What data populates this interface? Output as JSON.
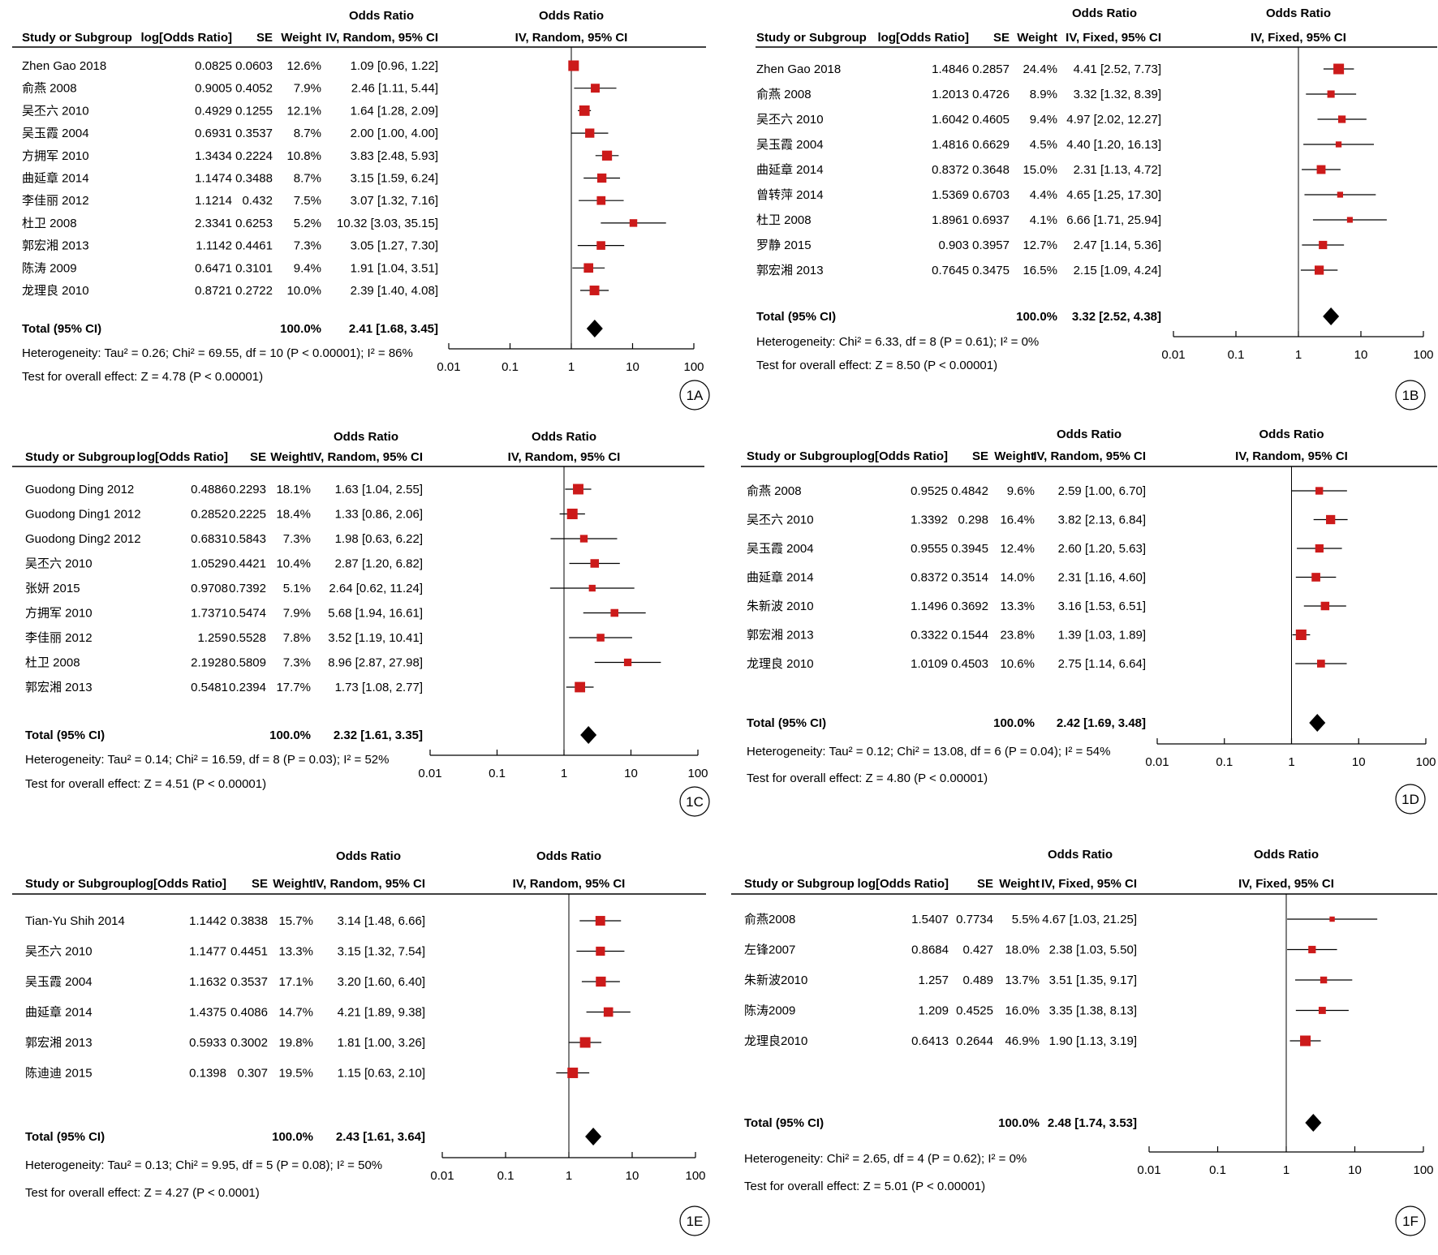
{
  "chart_data": [
    {
      "type": "forest",
      "panel_label": "1A",
      "title_effect": "Odds Ratio",
      "method_text": "IV, Random, 95% CI",
      "col_headers": {
        "study": "Study or Subgroup",
        "log": "log[Odds Ratio]",
        "se": "SE",
        "weight": "Weight"
      },
      "studies": [
        {
          "name": "Zhen Gao 2018",
          "log": "0.0825",
          "se": "0.0603",
          "weight": "12.6%",
          "ci": "1.09 [0.96, 1.22]",
          "or": 1.09,
          "lo": 0.96,
          "hi": 1.22
        },
        {
          "name": "俞燕 2008",
          "log": "0.9005",
          "se": "0.4052",
          "weight": "7.9%",
          "ci": "2.46 [1.11, 5.44]",
          "or": 2.46,
          "lo": 1.11,
          "hi": 5.44
        },
        {
          "name": "吴丕六 2010",
          "log": "0.4929",
          "se": "0.1255",
          "weight": "12.1%",
          "ci": "1.64 [1.28, 2.09]",
          "or": 1.64,
          "lo": 1.28,
          "hi": 2.09
        },
        {
          "name": "吴玉霞 2004",
          "log": "0.6931",
          "se": "0.3537",
          "weight": "8.7%",
          "ci": "2.00 [1.00, 4.00]",
          "or": 2.0,
          "lo": 1.0,
          "hi": 4.0
        },
        {
          "name": "方拥军 2010",
          "log": "1.3434",
          "se": "0.2224",
          "weight": "10.8%",
          "ci": "3.83 [2.48, 5.93]",
          "or": 3.83,
          "lo": 2.48,
          "hi": 5.93
        },
        {
          "name": "曲延章 2014",
          "log": "1.1474",
          "se": "0.3488",
          "weight": "8.7%",
          "ci": "3.15 [1.59, 6.24]",
          "or": 3.15,
          "lo": 1.59,
          "hi": 6.24
        },
        {
          "name": "李佳丽 2012",
          "log": "1.1214",
          "se": "0.432",
          "weight": "7.5%",
          "ci": "3.07 [1.32, 7.16]",
          "or": 3.07,
          "lo": 1.32,
          "hi": 7.16
        },
        {
          "name": "杜卫 2008",
          "log": "2.3341",
          "se": "0.6253",
          "weight": "5.2%",
          "ci": "10.32 [3.03, 35.15]",
          "or": 10.32,
          "lo": 3.03,
          "hi": 35.15
        },
        {
          "name": "郭宏湘 2013",
          "log": "1.1142",
          "se": "0.4461",
          "weight": "7.3%",
          "ci": "3.05 [1.27, 7.30]",
          "or": 3.05,
          "lo": 1.27,
          "hi": 7.3
        },
        {
          "name": "陈涛 2009",
          "log": "0.6471",
          "se": "0.3101",
          "weight": "9.4%",
          "ci": "1.91 [1.04, 3.51]",
          "or": 1.91,
          "lo": 1.04,
          "hi": 3.51
        },
        {
          "name": "龙理良 2010",
          "log": "0.8721",
          "se": "0.2722",
          "weight": "10.0%",
          "ci": "2.39 [1.40, 4.08]",
          "or": 2.39,
          "lo": 1.4,
          "hi": 4.08
        }
      ],
      "total": {
        "label": "Total (95% CI)",
        "weight": "100.0%",
        "ci": "2.41 [1.68, 3.45]",
        "or": 2.41,
        "lo": 1.68,
        "hi": 3.45
      },
      "heterogeneity": "Heterogeneity: Tau² = 0.26; Chi² = 69.55, df = 10 (P < 0.00001); I² = 86%",
      "overall_effect": "Test for overall effect: Z = 4.78 (P < 0.00001)",
      "x_ticks": [
        "0.01",
        "0.1",
        "1",
        "10",
        "100"
      ],
      "x_scale": "log",
      "xlim": [
        0.01,
        100
      ]
    },
    {
      "type": "forest",
      "panel_label": "1B",
      "title_effect": "Odds Ratio",
      "method_text": "IV, Fixed, 95% CI",
      "col_headers": {
        "study": "Study or Subgroup",
        "log": "log[Odds Ratio]",
        "se": "SE",
        "weight": "Weight"
      },
      "studies": [
        {
          "name": "Zhen Gao 2018",
          "log": "1.4846",
          "se": "0.2857",
          "weight": "24.4%",
          "ci": "4.41 [2.52, 7.73]",
          "or": 4.41,
          "lo": 2.52,
          "hi": 7.73
        },
        {
          "name": "俞燕 2008",
          "log": "1.2013",
          "se": "0.4726",
          "weight": "8.9%",
          "ci": "3.32 [1.32, 8.39]",
          "or": 3.32,
          "lo": 1.32,
          "hi": 8.39
        },
        {
          "name": "吴丕六 2010",
          "log": "1.6042",
          "se": "0.4605",
          "weight": "9.4%",
          "ci": "4.97 [2.02, 12.27]",
          "or": 4.97,
          "lo": 2.02,
          "hi": 12.27
        },
        {
          "name": "吴玉霞 2004",
          "log": "1.4816",
          "se": "0.6629",
          "weight": "4.5%",
          "ci": "4.40 [1.20, 16.13]",
          "or": 4.4,
          "lo": 1.2,
          "hi": 16.13
        },
        {
          "name": "曲延章 2014",
          "log": "0.8372",
          "se": "0.3648",
          "weight": "15.0%",
          "ci": "2.31 [1.13, 4.72]",
          "or": 2.31,
          "lo": 1.13,
          "hi": 4.72
        },
        {
          "name": "曾转萍 2014",
          "log": "1.5369",
          "se": "0.6703",
          "weight": "4.4%",
          "ci": "4.65 [1.25, 17.30]",
          "or": 4.65,
          "lo": 1.25,
          "hi": 17.3
        },
        {
          "name": "杜卫 2008",
          "log": "1.8961",
          "se": "0.6937",
          "weight": "4.1%",
          "ci": "6.66 [1.71, 25.94]",
          "or": 6.66,
          "lo": 1.71,
          "hi": 25.94
        },
        {
          "name": "罗静 2015",
          "log": "0.903",
          "se": "0.3957",
          "weight": "12.7%",
          "ci": "2.47 [1.14, 5.36]",
          "or": 2.47,
          "lo": 1.14,
          "hi": 5.36
        },
        {
          "name": "郭宏湘 2013",
          "log": "0.7645",
          "se": "0.3475",
          "weight": "16.5%",
          "ci": "2.15 [1.09, 4.24]",
          "or": 2.15,
          "lo": 1.09,
          "hi": 4.24
        }
      ],
      "total": {
        "label": "Total (95% CI)",
        "weight": "100.0%",
        "ci": "3.32 [2.52, 4.38]",
        "or": 3.32,
        "lo": 2.52,
        "hi": 4.38
      },
      "heterogeneity": "Heterogeneity: Chi² = 6.33, df = 8 (P = 0.61); I² = 0%",
      "overall_effect": "Test for overall effect: Z = 8.50 (P < 0.00001)",
      "x_ticks": [
        "0.01",
        "0.1",
        "1",
        "10",
        "100"
      ],
      "x_scale": "log",
      "xlim": [
        0.01,
        100
      ]
    },
    {
      "type": "forest",
      "panel_label": "1C",
      "title_effect": "Odds Ratio",
      "method_text": "IV, Random, 95% CI",
      "col_headers": {
        "study": "Study or Subgroup",
        "log": "log[Odds Ratio]",
        "se": "SE",
        "weight": "Weight"
      },
      "studies": [
        {
          "name": "Guodong Ding 2012",
          "log": "0.4886",
          "se": "0.2293",
          "weight": "18.1%",
          "ci": "1.63 [1.04, 2.55]",
          "or": 1.63,
          "lo": 1.04,
          "hi": 2.55
        },
        {
          "name": "Guodong Ding1 2012",
          "log": "0.2852",
          "se": "0.2225",
          "weight": "18.4%",
          "ci": "1.33 [0.86, 2.06]",
          "or": 1.33,
          "lo": 0.86,
          "hi": 2.06
        },
        {
          "name": "Guodong Ding2 2012",
          "log": "0.6831",
          "se": "0.5843",
          "weight": "7.3%",
          "ci": "1.98 [0.63, 6.22]",
          "or": 1.98,
          "lo": 0.63,
          "hi": 6.22
        },
        {
          "name": "吴丕六 2010",
          "log": "1.0529",
          "se": "0.4421",
          "weight": "10.4%",
          "ci": "2.87 [1.20, 6.82]",
          "or": 2.87,
          "lo": 1.2,
          "hi": 6.82
        },
        {
          "name": "张妍 2015",
          "log": "0.9708",
          "se": "0.7392",
          "weight": "5.1%",
          "ci": "2.64 [0.62, 11.24]",
          "or": 2.64,
          "lo": 0.62,
          "hi": 11.24
        },
        {
          "name": "方拥军 2010",
          "log": "1.7371",
          "se": "0.5474",
          "weight": "7.9%",
          "ci": "5.68 [1.94, 16.61]",
          "or": 5.68,
          "lo": 1.94,
          "hi": 16.61
        },
        {
          "name": "李佳丽 2012",
          "log": "1.259",
          "se": "0.5528",
          "weight": "7.8%",
          "ci": "3.52 [1.19, 10.41]",
          "or": 3.52,
          "lo": 1.19,
          "hi": 10.41
        },
        {
          "name": "杜卫 2008",
          "log": "2.1928",
          "se": "0.5809",
          "weight": "7.3%",
          "ci": "8.96 [2.87, 27.98]",
          "or": 8.96,
          "lo": 2.87,
          "hi": 27.98
        },
        {
          "name": "郭宏湘 2013",
          "log": "0.5481",
          "se": "0.2394",
          "weight": "17.7%",
          "ci": "1.73 [1.08, 2.77]",
          "or": 1.73,
          "lo": 1.08,
          "hi": 2.77
        }
      ],
      "total": {
        "label": "Total (95% CI)",
        "weight": "100.0%",
        "ci": "2.32 [1.61, 3.35]",
        "or": 2.32,
        "lo": 1.61,
        "hi": 3.35
      },
      "heterogeneity": "Heterogeneity: Tau² = 0.14; Chi² = 16.59, df = 8 (P = 0.03); I² = 52%",
      "overall_effect": "Test for overall effect: Z = 4.51 (P < 0.00001)",
      "x_ticks": [
        "0.01",
        "0.1",
        "1",
        "10",
        "100"
      ],
      "x_scale": "log",
      "xlim": [
        0.01,
        100
      ]
    },
    {
      "type": "forest",
      "panel_label": "1D",
      "title_effect": "Odds Ratio",
      "method_text": "IV, Random, 95% CI",
      "col_headers": {
        "study": "Study or Subgroup",
        "log": "log[Odds Ratio]",
        "se": "SE",
        "weight": "Weight"
      },
      "studies": [
        {
          "name": "俞燕 2008",
          "log": "0.9525",
          "se": "0.4842",
          "weight": "9.6%",
          "ci": "2.59 [1.00, 6.70]",
          "or": 2.59,
          "lo": 1.0,
          "hi": 6.7
        },
        {
          "name": "吴丕六 2010",
          "log": "1.3392",
          "se": "0.298",
          "weight": "16.4%",
          "ci": "3.82 [2.13, 6.84]",
          "or": 3.82,
          "lo": 2.13,
          "hi": 6.84
        },
        {
          "name": "吴玉霞 2004",
          "log": "0.9555",
          "se": "0.3945",
          "weight": "12.4%",
          "ci": "2.60 [1.20, 5.63]",
          "or": 2.6,
          "lo": 1.2,
          "hi": 5.63
        },
        {
          "name": "曲延章 2014",
          "log": "0.8372",
          "se": "0.3514",
          "weight": "14.0%",
          "ci": "2.31 [1.16, 4.60]",
          "or": 2.31,
          "lo": 1.16,
          "hi": 4.6
        },
        {
          "name": "朱新波 2010",
          "log": "1.1496",
          "se": "0.3692",
          "weight": "13.3%",
          "ci": "3.16 [1.53, 6.51]",
          "or": 3.16,
          "lo": 1.53,
          "hi": 6.51
        },
        {
          "name": "郭宏湘 2013",
          "log": "0.3322",
          "se": "0.1544",
          "weight": "23.8%",
          "ci": "1.39 [1.03, 1.89]",
          "or": 1.39,
          "lo": 1.03,
          "hi": 1.89
        },
        {
          "name": "龙理良 2010",
          "log": "1.0109",
          "se": "0.4503",
          "weight": "10.6%",
          "ci": "2.75 [1.14, 6.64]",
          "or": 2.75,
          "lo": 1.14,
          "hi": 6.64
        }
      ],
      "total": {
        "label": "Total (95% CI)",
        "weight": "100.0%",
        "ci": "2.42 [1.69, 3.48]",
        "or": 2.42,
        "lo": 1.69,
        "hi": 3.48
      },
      "heterogeneity": "Heterogeneity: Tau² = 0.12; Chi² = 13.08, df = 6 (P = 0.04); I² = 54%",
      "overall_effect": "Test for overall effect: Z = 4.80 (P < 0.00001)",
      "x_ticks": [
        "0.01",
        "0.1",
        "1",
        "10",
        "100"
      ],
      "x_scale": "log",
      "xlim": [
        0.01,
        100
      ]
    },
    {
      "type": "forest",
      "panel_label": "1E",
      "title_effect": "Odds Ratio",
      "method_text": "IV, Random, 95% CI",
      "col_headers": {
        "study": "Study or Subgroup",
        "log": "log[Odds Ratio]",
        "se": "SE",
        "weight": "Weight"
      },
      "studies": [
        {
          "name": "Tian-Yu Shih 2014",
          "log": "1.1442",
          "se": "0.3838",
          "weight": "15.7%",
          "ci": "3.14 [1.48, 6.66]",
          "or": 3.14,
          "lo": 1.48,
          "hi": 6.66
        },
        {
          "name": "吴丕六 2010",
          "log": "1.1477",
          "se": "0.4451",
          "weight": "13.3%",
          "ci": "3.15 [1.32, 7.54]",
          "or": 3.15,
          "lo": 1.32,
          "hi": 7.54
        },
        {
          "name": "吴玉霞 2004",
          "log": "1.1632",
          "se": "0.3537",
          "weight": "17.1%",
          "ci": "3.20 [1.60, 6.40]",
          "or": 3.2,
          "lo": 1.6,
          "hi": 6.4
        },
        {
          "name": "曲延章 2014",
          "log": "1.4375",
          "se": "0.4086",
          "weight": "14.7%",
          "ci": "4.21 [1.89, 9.38]",
          "or": 4.21,
          "lo": 1.89,
          "hi": 9.38
        },
        {
          "name": "郭宏湘 2013",
          "log": "0.5933",
          "se": "0.3002",
          "weight": "19.8%",
          "ci": "1.81 [1.00, 3.26]",
          "or": 1.81,
          "lo": 1.0,
          "hi": 3.26
        },
        {
          "name": "陈迪迪 2015",
          "log": "0.1398",
          "se": "0.307",
          "weight": "19.5%",
          "ci": "1.15 [0.63, 2.10]",
          "or": 1.15,
          "lo": 0.63,
          "hi": 2.1
        }
      ],
      "total": {
        "label": "Total (95% CI)",
        "weight": "100.0%",
        "ci": "2.43 [1.61, 3.64]",
        "or": 2.43,
        "lo": 1.61,
        "hi": 3.64
      },
      "heterogeneity": "Heterogeneity: Tau² = 0.13; Chi² = 9.95, df = 5 (P = 0.08); I² = 50%",
      "overall_effect": "Test for overall effect: Z = 4.27 (P < 0.0001)",
      "x_ticks": [
        "0.01",
        "0.1",
        "1",
        "10",
        "100"
      ],
      "x_scale": "log",
      "xlim": [
        0.01,
        100
      ]
    },
    {
      "type": "forest",
      "panel_label": "1F",
      "title_effect": "Odds Ratio",
      "method_text": "IV, Fixed, 95% CI",
      "col_headers": {
        "study": "Study or Subgroup",
        "log": "log[Odds Ratio]",
        "se": "SE",
        "weight": "Weight"
      },
      "studies": [
        {
          "name": "俞燕2008",
          "log": "1.5407",
          "se": "0.7734",
          "weight": "5.5%",
          "ci": "4.67 [1.03, 21.25]",
          "or": 4.67,
          "lo": 1.03,
          "hi": 21.25
        },
        {
          "name": "左锋2007",
          "log": "0.8684",
          "se": "0.427",
          "weight": "18.0%",
          "ci": "2.38 [1.03, 5.50]",
          "or": 2.38,
          "lo": 1.03,
          "hi": 5.5
        },
        {
          "name": "朱新波2010",
          "log": "1.257",
          "se": "0.489",
          "weight": "13.7%",
          "ci": "3.51 [1.35, 9.17]",
          "or": 3.51,
          "lo": 1.35,
          "hi": 9.17
        },
        {
          "name": "陈涛2009",
          "log": "1.209",
          "se": "0.4525",
          "weight": "16.0%",
          "ci": "3.35 [1.38, 8.13]",
          "or": 3.35,
          "lo": 1.38,
          "hi": 8.13
        },
        {
          "name": "龙理良2010",
          "log": "0.6413",
          "se": "0.2644",
          "weight": "46.9%",
          "ci": "1.90 [1.13, 3.19]",
          "or": 1.9,
          "lo": 1.13,
          "hi": 3.19
        }
      ],
      "total": {
        "label": "Total (95% CI)",
        "weight": "100.0%",
        "ci": "2.48 [1.74, 3.53]",
        "or": 2.48,
        "lo": 1.74,
        "hi": 3.53
      },
      "heterogeneity": "Heterogeneity: Chi² = 2.65, df = 4 (P = 0.62); I² = 0%",
      "overall_effect": "Test for overall effect: Z = 5.01 (P < 0.00001)",
      "x_ticks": [
        "0.01",
        "0.1",
        "1",
        "10",
        "100"
      ],
      "x_scale": "log",
      "xlim": [
        0.01,
        100
      ]
    }
  ],
  "colors": {
    "square": "#cc1a1a",
    "ink": "#000000",
    "grey_line": "#666666"
  }
}
